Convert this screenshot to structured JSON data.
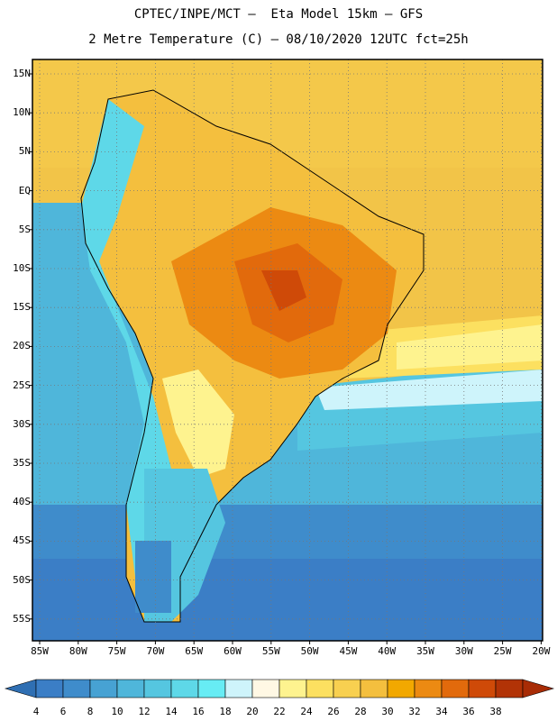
{
  "header": {
    "line1": "CPTEC/INPE/MCT –  Eta Model 15km – GFS",
    "line2": "2 Metre Temperature (C) – 08/10/2020 12UTC fct=25h"
  },
  "axes": {
    "lat_labels": [
      "15N",
      "10N",
      "5N",
      "EQ",
      "5S",
      "10S",
      "15S",
      "20S",
      "25S",
      "30S",
      "35S",
      "40S",
      "45S",
      "50S",
      "55S"
    ],
    "lon_labels": [
      "85W",
      "80W",
      "75W",
      "70W",
      "65W",
      "60W",
      "55W",
      "50W",
      "45W",
      "40W",
      "35W",
      "30W",
      "25W",
      "20W"
    ]
  },
  "colorbar": {
    "values": [
      "4",
      "6",
      "8",
      "10",
      "12",
      "14",
      "16",
      "18",
      "20",
      "22",
      "24",
      "26",
      "28",
      "30",
      "32",
      "34",
      "36",
      "38"
    ],
    "colors": [
      "#3b7ec6",
      "#3f8ccb",
      "#47a2d3",
      "#4fb6da",
      "#55c6e0",
      "#5ed8e8",
      "#67ecf4",
      "#cef4fb",
      "#fff8e4",
      "#fef38f",
      "#fce060",
      "#f8d050",
      "#f4bf3e",
      "#f2a800",
      "#ec8a12",
      "#e26a0c",
      "#cf4a08",
      "#b23306"
    ],
    "low_color": "#2f6fb3",
    "high_color": "#a82c06"
  },
  "field_colors": {
    "ocean_warm": "#f4c84a",
    "hot_core": "#cf5a10"
  }
}
